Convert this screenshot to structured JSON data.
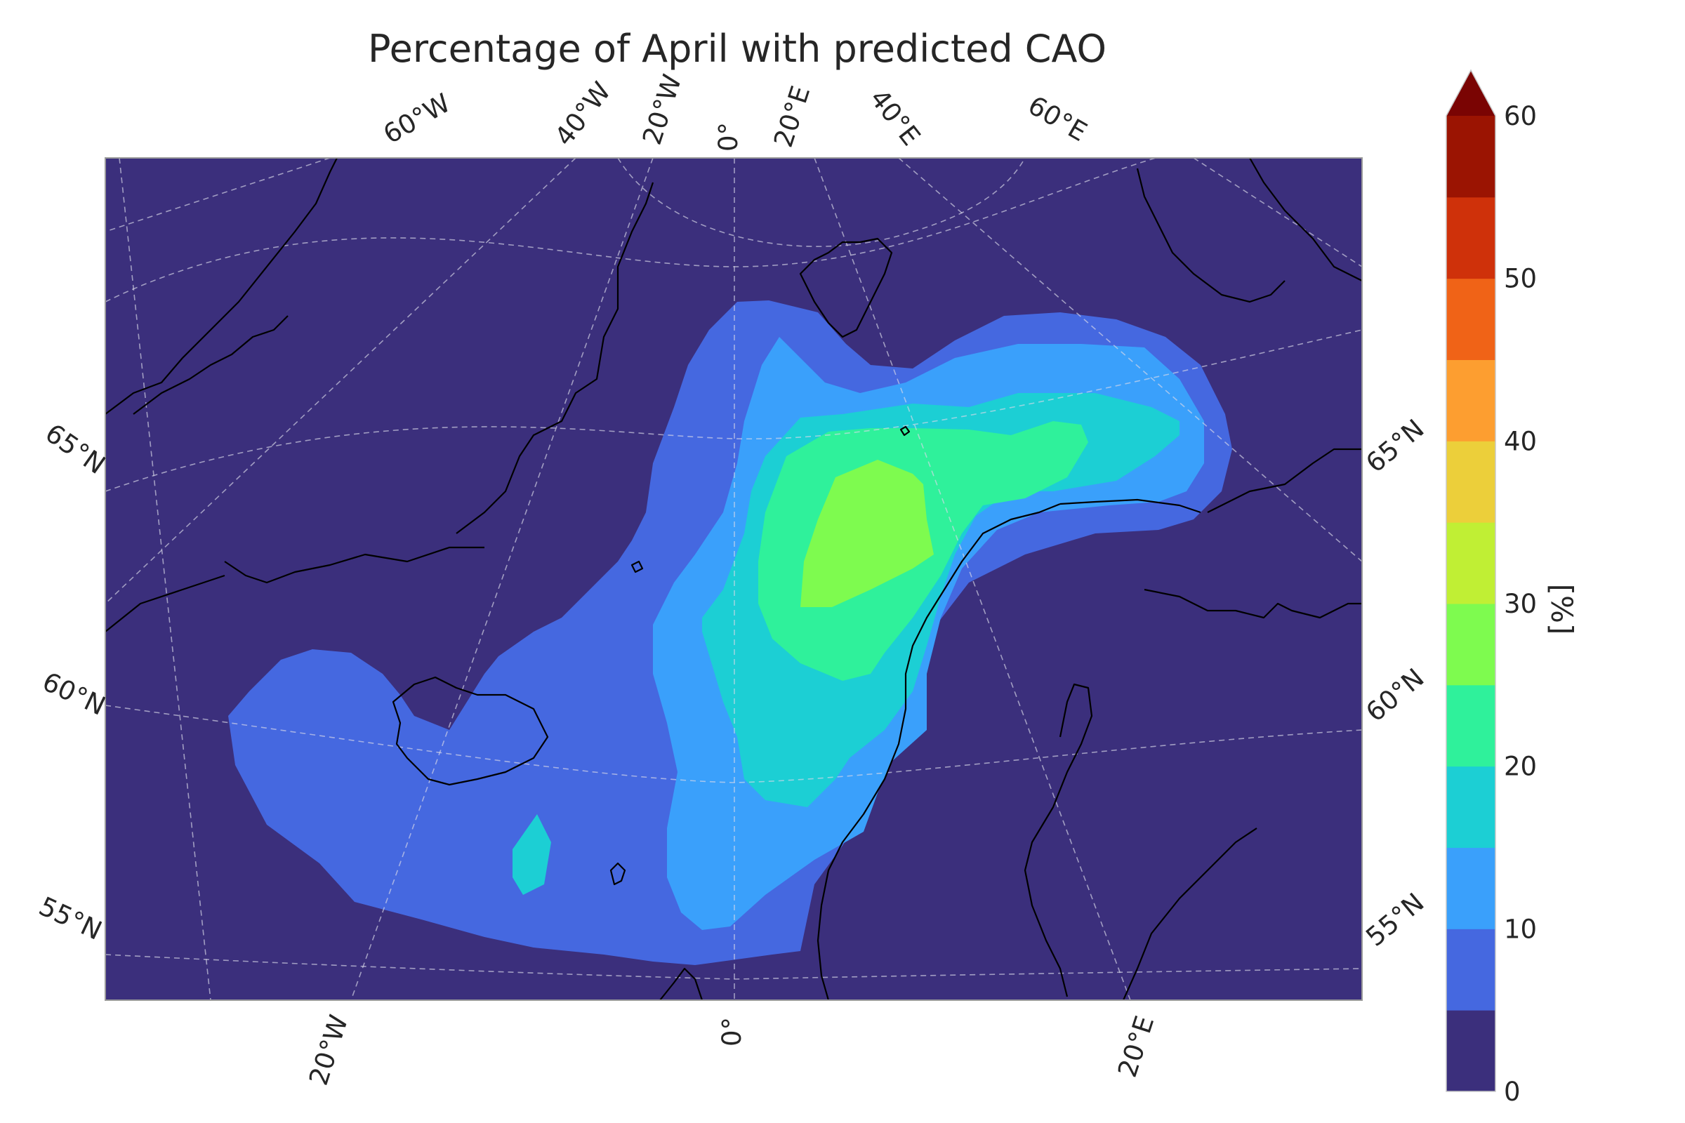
{
  "title": "Percentage of April with predicted CAO",
  "colorbar": {
    "label": "[%]",
    "tick_labels": [
      "0",
      "10",
      "20",
      "30",
      "40",
      "50",
      "60"
    ],
    "levels": [
      0,
      5,
      10,
      15,
      20,
      25,
      30,
      35,
      40,
      45,
      50,
      55,
      60
    ],
    "colors": [
      "#3b2f7c",
      "#4568e0",
      "#3aa0fb",
      "#1ccfd4",
      "#2ff19b",
      "#7efb4f",
      "#c0ef34",
      "#eccf3a",
      "#fd9e30",
      "#f06317",
      "#cf310a",
      "#9b1402"
    ],
    "extend_color": "#7a0403",
    "extend": "max"
  },
  "map": {
    "background_color": "#3b2f7c",
    "region": "North Atlantic / Nordic Seas",
    "top_lon_labels": [
      "60°W",
      "40°W",
      "20°W",
      "0°",
      "20°E",
      "40°E",
      "60°E"
    ],
    "bottom_lon_labels": [
      "20°W",
      "0°",
      "20°E"
    ],
    "left_lat_labels": [
      "65°N",
      "60°N",
      "55°N"
    ],
    "right_lat_labels": [
      "65°N",
      "60°N",
      "55°N"
    ],
    "gridlines": true,
    "coastlines": true
  }
}
